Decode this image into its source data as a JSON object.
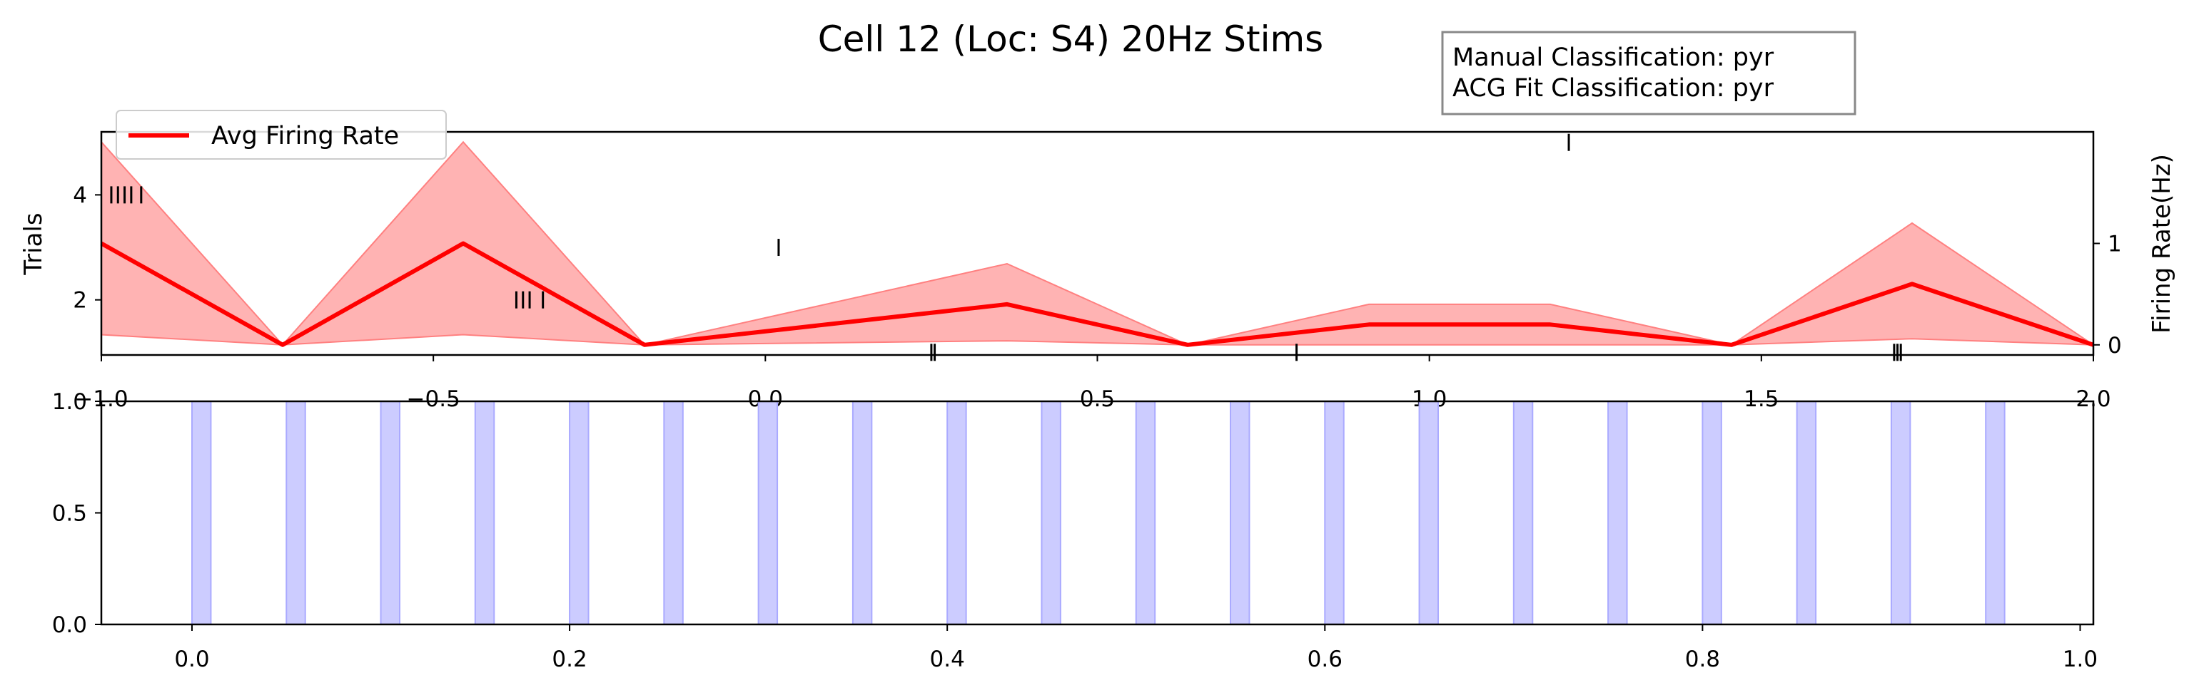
{
  "chart_data": [
    {
      "type": "line",
      "title": "Cell 12 (Loc: S4) 20Hz Stims",
      "xlim": [
        -1.0,
        2.0
      ],
      "x_ticks": [
        -1.0,
        -0.5,
        0.0,
        0.5,
        1.0,
        1.5,
        2.0
      ],
      "x_tick_labels": [
        "−1.0",
        "−0.5",
        "0.0",
        "0.5",
        "1.0",
        "1.5",
        "2.0"
      ],
      "ylabel": "Trials",
      "ylim": [
        0.95,
        5.2
      ],
      "y_ticks": [
        2,
        4
      ],
      "y_tick_labels": [
        "2",
        "4"
      ],
      "y2label": "Firing Rate(Hz)",
      "y2lim": [
        -0.1,
        2.1
      ],
      "y2_ticks": [
        0,
        1
      ],
      "y2_tick_labels": [
        "0",
        "1"
      ],
      "legend": {
        "placement": "upper-left",
        "entries": [
          "Avg Firing Rate"
        ]
      },
      "annotation": [
        "Manual Classification: pyr",
        "ACG Fit Classification: pyr"
      ],
      "raster": [
        {
          "trial": 5,
          "times": [
            1.21
          ]
        },
        {
          "trial": 4,
          "times": [
            -0.985,
            -0.975,
            -0.965,
            -0.955,
            -0.94
          ]
        },
        {
          "trial": 3,
          "times": [
            0.02
          ]
        },
        {
          "trial": 2,
          "times": [
            -0.375,
            -0.365,
            -0.355,
            -0.335
          ]
        },
        {
          "trial": 1,
          "times": [
            0.25,
            0.255,
            0.8,
            1.7,
            1.705,
            1.71
          ]
        }
      ],
      "series": [
        {
          "name": "Avg Firing Rate",
          "color": "#ff0000",
          "band_color": "#ff8080",
          "x": [
            -1.0,
            -0.727,
            -0.455,
            -0.182,
            0.364,
            0.636,
            0.909,
            1.182,
            1.455,
            1.727,
            2.0
          ],
          "y": [
            1.0,
            0.0,
            1.0,
            0.0,
            0.4,
            0.0,
            0.2,
            0.2,
            0.0,
            0.6,
            0.0
          ],
          "upper": [
            2.0,
            0.0,
            2.0,
            0.0,
            0.8,
            0.0,
            0.4,
            0.4,
            0.0,
            1.2,
            0.0
          ],
          "lower": [
            0.1,
            0.0,
            0.1,
            0.0,
            0.04,
            0.0,
            0.0,
            0.0,
            0.0,
            0.06,
            0.0
          ]
        }
      ]
    },
    {
      "type": "bar",
      "xlim": [
        -0.048,
        1.007
      ],
      "x_ticks": [
        0.0,
        0.2,
        0.4,
        0.6,
        0.8,
        1.0
      ],
      "x_tick_labels": [
        "0.0",
        "0.2",
        "0.4",
        "0.6",
        "0.8",
        "1.0"
      ],
      "ylim": [
        0.0,
        1.0
      ],
      "y_ticks": [
        0.0,
        0.5,
        1.0
      ],
      "y_tick_labels": [
        "0.0",
        "0.5",
        "1.0"
      ],
      "stim_color": "#ccccff",
      "stim_width": 0.01,
      "stim_onsets": [
        0.0,
        0.05,
        0.1,
        0.15,
        0.2,
        0.25,
        0.3,
        0.35,
        0.4,
        0.45,
        0.5,
        0.55,
        0.6,
        0.65,
        0.7,
        0.75,
        0.8,
        0.85,
        0.9,
        0.95
      ]
    }
  ]
}
